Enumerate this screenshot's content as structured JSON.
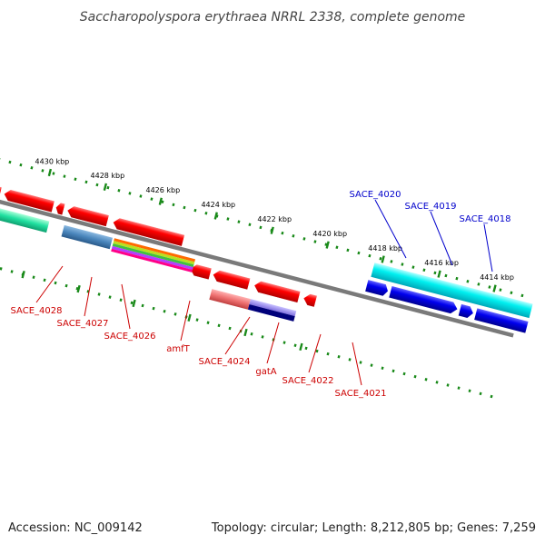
{
  "title": "Saccharopolyspora erythraea NRRL 2338, complete genome",
  "footer": {
    "accession": "Accession: NC_009142",
    "summary": "Topology: circular; Length: 8,212,805 bp; Genes: 7,259"
  },
  "colors": {
    "backbone": "#808080",
    "tick": "#1a8a1a",
    "gene_red": "#ff0000",
    "gene_blue": "#0000ff",
    "label_red": "#cc0000",
    "label_blue": "#0000cc"
  },
  "ruler": {
    "outer_ticks": [
      "4430 kbp",
      "4428 kbp",
      "4426 kbp",
      "4424 kbp",
      "4422 kbp",
      "4420 kbp",
      "4418 kbp",
      "4416 kbp",
      "4414 kbp"
    ]
  },
  "genes": {
    "red_labels": [
      "SACE_4028",
      "SACE_4027",
      "SACE_4026",
      "amfT",
      "SACE_4024",
      "gatA",
      "SACE_4022",
      "SACE_4021"
    ],
    "blue_labels": [
      "SACE_4020",
      "SACE_4019",
      "SACE_4018"
    ]
  }
}
